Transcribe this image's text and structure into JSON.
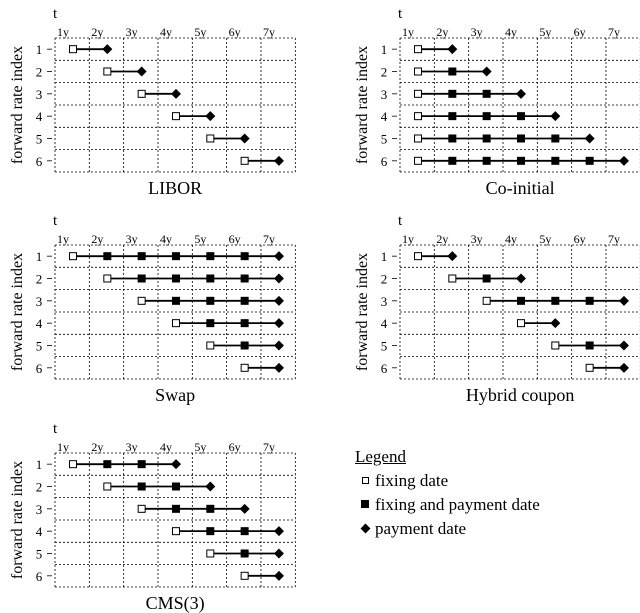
{
  "time_label": "t",
  "y_label": "forward rate index",
  "tenors": [
    "1y",
    "2y",
    "3y",
    "4y",
    "5y",
    "6y",
    "7y"
  ],
  "row_indices": [
    "1",
    "2",
    "3",
    "4",
    "5",
    "6"
  ],
  "panels": [
    {
      "title": "LIBOR",
      "rows": [
        {
          "fixing": 1,
          "mids": [],
          "payment": 2
        },
        {
          "fixing": 2,
          "mids": [],
          "payment": 3
        },
        {
          "fixing": 3,
          "mids": [],
          "payment": 4
        },
        {
          "fixing": 4,
          "mids": [],
          "payment": 5
        },
        {
          "fixing": 5,
          "mids": [],
          "payment": 6
        },
        {
          "fixing": 6,
          "mids": [],
          "payment": 7
        }
      ]
    },
    {
      "title": "Co-initial",
      "rows": [
        {
          "fixing": 1,
          "mids": [],
          "payment": 2
        },
        {
          "fixing": 1,
          "mids": [
            2
          ],
          "payment": 3
        },
        {
          "fixing": 1,
          "mids": [
            2,
            3
          ],
          "payment": 4
        },
        {
          "fixing": 1,
          "mids": [
            2,
            3,
            4
          ],
          "payment": 5
        },
        {
          "fixing": 1,
          "mids": [
            2,
            3,
            4,
            5
          ],
          "payment": 6
        },
        {
          "fixing": 1,
          "mids": [
            2,
            3,
            4,
            5,
            6
          ],
          "payment": 7
        }
      ]
    },
    {
      "title": "Swap",
      "rows": [
        {
          "fixing": 1,
          "mids": [
            2,
            3,
            4,
            5,
            6
          ],
          "payment": 7
        },
        {
          "fixing": 2,
          "mids": [
            3,
            4,
            5,
            6
          ],
          "payment": 7
        },
        {
          "fixing": 3,
          "mids": [
            4,
            5,
            6
          ],
          "payment": 7
        },
        {
          "fixing": 4,
          "mids": [
            5,
            6
          ],
          "payment": 7
        },
        {
          "fixing": 5,
          "mids": [
            6
          ],
          "payment": 7
        },
        {
          "fixing": 6,
          "mids": [],
          "payment": 7
        }
      ]
    },
    {
      "title": "Hybrid coupon",
      "rows": [
        {
          "fixing": 1,
          "mids": [],
          "payment": 2
        },
        {
          "fixing": 2,
          "mids": [
            3
          ],
          "payment": 4
        },
        {
          "fixing": 3,
          "mids": [
            4,
            5,
            6
          ],
          "payment": 7
        },
        {
          "fixing": 4,
          "mids": [],
          "payment": 5
        },
        {
          "fixing": 5,
          "mids": [
            6
          ],
          "payment": 7
        },
        {
          "fixing": 6,
          "mids": [],
          "payment": 7
        }
      ]
    },
    {
      "title": "CMS(3)",
      "rows": [
        {
          "fixing": 1,
          "mids": [
            2,
            3
          ],
          "payment": 4
        },
        {
          "fixing": 2,
          "mids": [
            3,
            4
          ],
          "payment": 5
        },
        {
          "fixing": 3,
          "mids": [
            4,
            5
          ],
          "payment": 6
        },
        {
          "fixing": 4,
          "mids": [
            5,
            6
          ],
          "payment": 7
        },
        {
          "fixing": 5,
          "mids": [
            6
          ],
          "payment": 7
        },
        {
          "fixing": 6,
          "mids": [],
          "payment": 7
        }
      ]
    }
  ],
  "legend": {
    "title": "Legend",
    "items": [
      {
        "symbol": "open-square-icon",
        "label": "fixing date"
      },
      {
        "symbol": "filled-square-icon",
        "label": "fixing and payment date"
      },
      {
        "symbol": "diamond-icon",
        "label": "payment date"
      }
    ]
  }
}
